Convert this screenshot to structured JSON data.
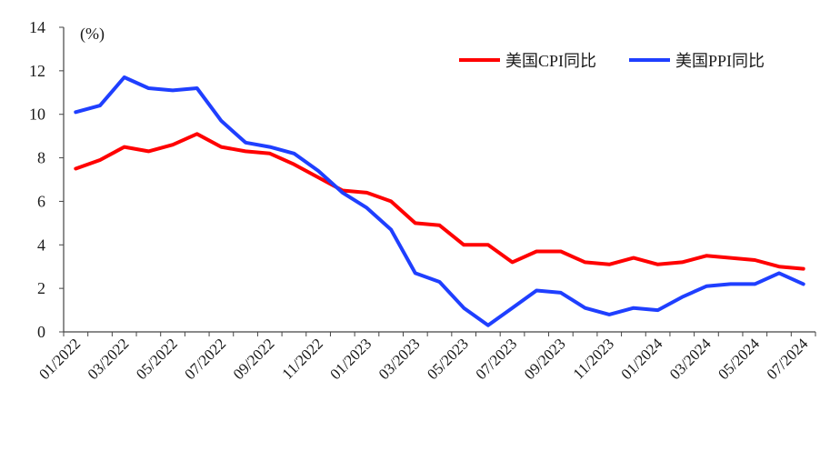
{
  "chart_data": {
    "type": "line",
    "unit_label": "(%)",
    "ylim": [
      0,
      14
    ],
    "y_ticks": [
      0,
      2,
      4,
      6,
      8,
      10,
      12,
      14
    ],
    "x": [
      "01/2022",
      "02/2022",
      "03/2022",
      "04/2022",
      "05/2022",
      "06/2022",
      "07/2022",
      "08/2022",
      "09/2022",
      "10/2022",
      "11/2022",
      "12/2022",
      "01/2023",
      "02/2023",
      "03/2023",
      "04/2023",
      "05/2023",
      "06/2023",
      "07/2023",
      "08/2023",
      "09/2023",
      "10/2023",
      "11/2023",
      "12/2023",
      "01/2024",
      "02/2024",
      "03/2024",
      "04/2024",
      "05/2024",
      "06/2024",
      "07/2024"
    ],
    "x_tick_labels": [
      "01/2022",
      "03/2022",
      "05/2022",
      "07/2022",
      "09/2022",
      "11/2022",
      "01/2023",
      "03/2023",
      "05/2023",
      "07/2023",
      "09/2023",
      "11/2023",
      "01/2024",
      "03/2024",
      "05/2024",
      "07/2024"
    ],
    "series": [
      {
        "name": "美国CPI同比",
        "color": "#ff0000",
        "values": [
          7.5,
          7.9,
          8.5,
          8.3,
          8.6,
          9.1,
          8.5,
          8.3,
          8.2,
          7.7,
          7.1,
          6.5,
          6.4,
          6.0,
          5.0,
          4.9,
          4.0,
          4.0,
          3.2,
          3.7,
          3.7,
          3.2,
          3.1,
          3.4,
          3.1,
          3.2,
          3.5,
          3.4,
          3.3,
          3.0,
          2.9
        ]
      },
      {
        "name": "美国PPI同比",
        "color": "#1f3fff",
        "values": [
          10.1,
          10.4,
          11.7,
          11.2,
          11.1,
          11.2,
          9.7,
          8.7,
          8.5,
          8.2,
          7.4,
          6.4,
          5.7,
          4.7,
          2.7,
          2.3,
          1.1,
          0.3,
          1.1,
          1.9,
          1.8,
          1.1,
          0.8,
          1.1,
          1.0,
          1.6,
          2.1,
          2.2,
          2.2,
          2.7,
          2.2
        ]
      }
    ],
    "grid": false,
    "legend_position": "top-right"
  }
}
